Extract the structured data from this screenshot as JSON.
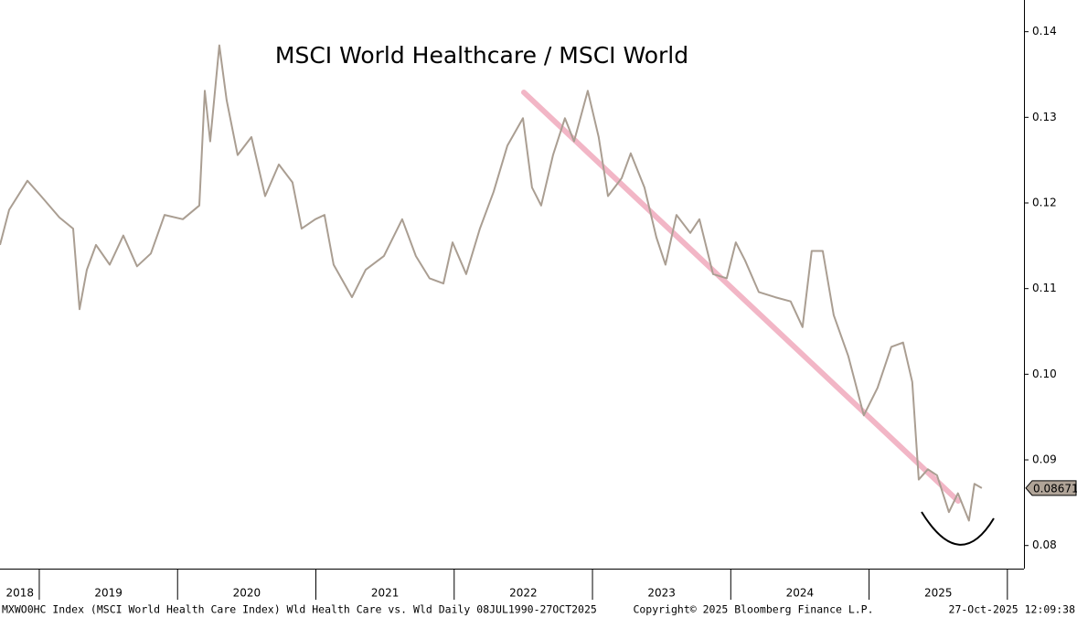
{
  "chart_data": {
    "type": "line",
    "title": "MSCI World Healthcare / MSCI World",
    "series": [
      {
        "name": "MXWO0HC Index",
        "color": "#aa9e92",
        "x": [
          2018.716,
          2018.782,
          2018.914,
          2019.013,
          2019.146,
          2019.245,
          2019.291,
          2019.344,
          2019.41,
          2019.509,
          2019.608,
          2019.707,
          2019.807,
          2019.906,
          2020.038,
          2020.157,
          2020.197,
          2020.236,
          2020.302,
          2020.355,
          2020.434,
          2020.534,
          2020.633,
          2020.732,
          2020.831,
          2020.897,
          2020.996,
          2021.062,
          2021.128,
          2021.261,
          2021.36,
          2021.492,
          2021.624,
          2021.723,
          2021.822,
          2021.922,
          2021.988,
          2022.087,
          2022.186,
          2022.285,
          2022.385,
          2022.497,
          2022.563,
          2022.629,
          2022.715,
          2022.801,
          2022.867,
          2022.966,
          2023.045,
          2023.112,
          2023.211,
          2023.277,
          2023.376,
          2023.462,
          2023.528,
          2023.607,
          2023.707,
          2023.773,
          2023.872,
          2023.971,
          2024.036,
          2024.103,
          2024.202,
          2024.321,
          2024.433,
          2024.519,
          2024.585,
          2024.665,
          2024.744,
          2024.85,
          2024.962,
          2025.061,
          2025.161,
          2025.246,
          2025.312,
          2025.359,
          2025.425,
          2025.491,
          2025.577,
          2025.643,
          2025.722,
          2025.762,
          2025.815
        ],
        "values": [
          0.1151,
          0.1192,
          0.1226,
          0.1208,
          0.1183,
          0.117,
          0.1076,
          0.1122,
          0.1151,
          0.1128,
          0.1162,
          0.1126,
          0.1141,
          0.1186,
          0.1181,
          0.1197,
          0.1331,
          0.1272,
          0.1384,
          0.132,
          0.1256,
          0.1277,
          0.1208,
          0.1245,
          0.1224,
          0.117,
          0.1181,
          0.1186,
          0.1128,
          0.109,
          0.1122,
          0.1138,
          0.1181,
          0.1138,
          0.1112,
          0.1106,
          0.1154,
          0.1117,
          0.117,
          0.1213,
          0.1267,
          0.1299,
          0.1218,
          0.1197,
          0.1256,
          0.1299,
          0.1272,
          0.1331,
          0.1277,
          0.1208,
          0.1229,
          0.1258,
          0.1218,
          0.116,
          0.1128,
          0.1186,
          0.1165,
          0.1181,
          0.1117,
          0.1112,
          0.1154,
          0.1133,
          0.1096,
          0.109,
          0.1085,
          0.1055,
          0.1144,
          0.1144,
          0.1069,
          0.1021,
          0.0952,
          0.0984,
          0.1032,
          0.1037,
          0.0991,
          0.0877,
          0.0889,
          0.0882,
          0.0839,
          0.0861,
          0.0829,
          0.0872,
          0.0867
        ]
      }
    ],
    "last_value": 0.08671,
    "xlim": [
      2018.716,
      2026.12
    ],
    "xticks": [
      {
        "value": 2018.86,
        "label": "2018"
      },
      {
        "value": 2019.5,
        "label": "2019"
      },
      {
        "value": 2020.5,
        "label": "2020"
      },
      {
        "value": 2021.5,
        "label": "2021"
      },
      {
        "value": 2022.5,
        "label": "2022"
      },
      {
        "value": 2023.5,
        "label": "2023"
      },
      {
        "value": 2024.5,
        "label": "2024"
      },
      {
        "value": 2025.5,
        "label": "2025"
      }
    ],
    "ylim": [
      0.0773,
      0.1437
    ],
    "yticks": [
      0.08,
      0.09,
      {
        "value": 0.1,
        "label": "0.10"
      },
      0.11,
      0.12,
      0.13,
      0.14
    ],
    "footer_left": "MXWO0HC Index (MSCI World Health Care Index) Wld Health Care vs. Wld Daily 08JUL1990-27OCT2025",
    "footer_center": "Copyright© 2025 Bloomberg Finance L.P.",
    "footer_right": "27-Oct-2025 12:09:38"
  }
}
